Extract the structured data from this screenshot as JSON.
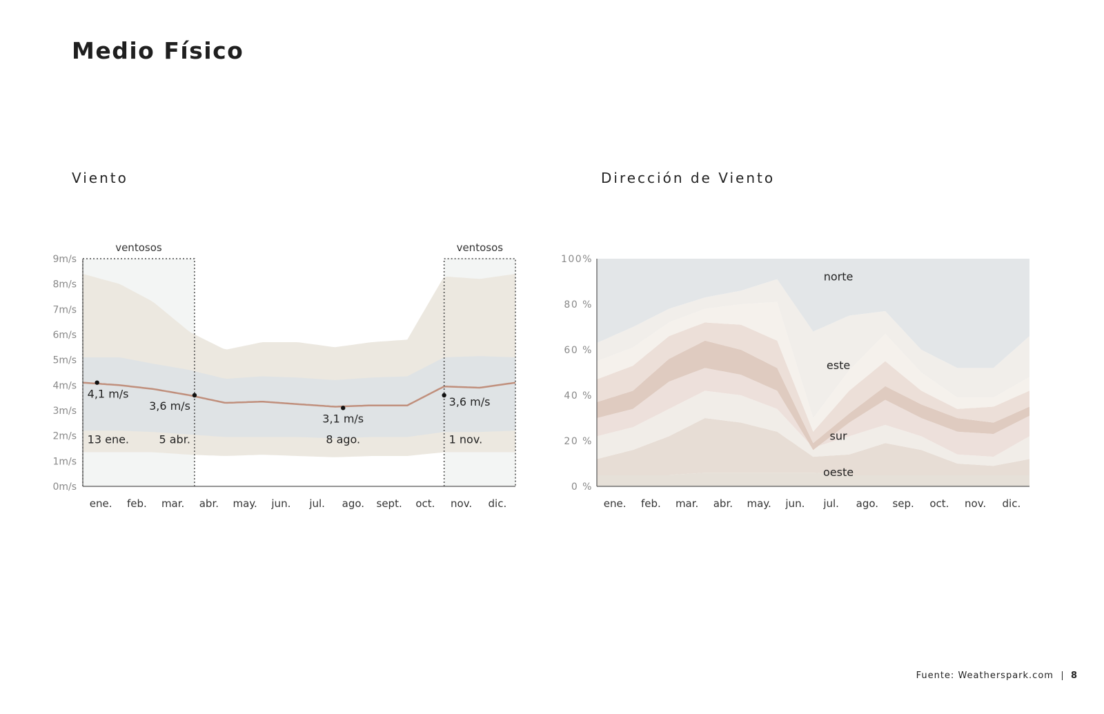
{
  "page": {
    "title": "Medio Físico",
    "source": "Fuente: Weatherspark.com",
    "page_number": "8"
  },
  "colors": {
    "band_outer": "#ece8e0",
    "band_inner": "#dfe3e5",
    "line": "#c08f7c",
    "windy_bg": "#f3f5f4",
    "axis": "#555555",
    "tick": "#888888"
  },
  "chart_data": [
    {
      "type": "line",
      "title": "Viento",
      "units": "m/s",
      "months": [
        "ene.",
        "feb.",
        "mar.",
        "abr.",
        "may.",
        "jun.",
        "jul.",
        "ago.",
        "sept.",
        "oct.",
        "nov.",
        "dic."
      ],
      "y_ticks": [
        "0m/s",
        "1m/s",
        "2m/s",
        "3m/s",
        "4m/s",
        "5m/s",
        "6m/s",
        "7m/s",
        "8m/s",
        "9m/s"
      ],
      "ylim": [
        0,
        9
      ],
      "x_day": [
        1,
        32,
        60,
        91,
        121,
        152,
        182,
        213,
        244,
        274,
        305,
        335,
        365
      ],
      "average": [
        4.1,
        4.0,
        3.85,
        3.6,
        3.3,
        3.35,
        3.25,
        3.15,
        3.2,
        3.2,
        3.95,
        3.9,
        4.1
      ],
      "band_p25_p75_low": [
        2.2,
        2.2,
        2.15,
        2.05,
        1.95,
        1.95,
        1.95,
        1.9,
        1.95,
        1.95,
        2.15,
        2.15,
        2.2
      ],
      "band_p25_p75_high": [
        5.1,
        5.1,
        4.85,
        4.6,
        4.25,
        4.35,
        4.3,
        4.2,
        4.3,
        4.35,
        5.1,
        5.15,
        5.1
      ],
      "band_p10_p90_low": [
        1.35,
        1.35,
        1.35,
        1.25,
        1.2,
        1.25,
        1.2,
        1.15,
        1.2,
        1.2,
        1.35,
        1.35,
        1.35
      ],
      "band_p10_p90_high": [
        8.4,
        8.0,
        7.3,
        6.1,
        5.4,
        5.7,
        5.7,
        5.5,
        5.7,
        5.8,
        8.3,
        8.2,
        8.4
      ],
      "windy_periods": [
        {
          "label": "ventosos",
          "start_day": 1,
          "end_day": 95
        },
        {
          "label": "ventosos",
          "start_day": 305,
          "end_day": 365
        }
      ],
      "annotations": [
        {
          "day": 13,
          "value": 4.1,
          "value_label": "4,1 m/s",
          "date_label": "13 ene."
        },
        {
          "day": 95,
          "value": 3.6,
          "value_label": "3,6 m/s",
          "date_label": "5 abr."
        },
        {
          "day": 220,
          "value": 3.1,
          "value_label": "3,1 m/s",
          "date_label": "8 ago."
        },
        {
          "day": 305,
          "value": 3.6,
          "value_label": "3,6 m/s",
          "date_label": "1 nov."
        }
      ]
    },
    {
      "type": "area",
      "title": "Dirección de Viento",
      "stacked": true,
      "months": [
        "ene.",
        "feb.",
        "mar.",
        "abr.",
        "may.",
        "jun.",
        "jul.",
        "ago.",
        "sep.",
        "oct.",
        "nov.",
        "dic."
      ],
      "y_ticks": [
        "0 %",
        "20 %",
        "40 %",
        "60 %",
        "80 %",
        "100%"
      ],
      "ylim": [
        0,
        100
      ],
      "x_month_index": [
        0,
        1,
        2,
        3,
        4,
        5,
        6,
        7,
        8,
        9,
        10,
        11,
        12
      ],
      "boundaries": [
        [
          0,
          0,
          0,
          0,
          0,
          0,
          0,
          0,
          0,
          0,
          0,
          0,
          0
        ],
        [
          5,
          5,
          5,
          6,
          6,
          6,
          6,
          5,
          5,
          5,
          5,
          5,
          5
        ],
        [
          12,
          16,
          22,
          30,
          28,
          24,
          13,
          14,
          19,
          16,
          10,
          9,
          12
        ],
        [
          22,
          26,
          34,
          42,
          40,
          34,
          17,
          22,
          27,
          22,
          14,
          13,
          22
        ],
        [
          30,
          34,
          46,
          52,
          49,
          42,
          16,
          28,
          38,
          30,
          24,
          23,
          31
        ],
        [
          37,
          42,
          56,
          64,
          60,
          52,
          19,
          32,
          44,
          36,
          30,
          28,
          35
        ],
        [
          47,
          53,
          66,
          72,
          71,
          64,
          24,
          42,
          55,
          42,
          34,
          35,
          42
        ],
        [
          55,
          61,
          72,
          78,
          80,
          81,
          30,
          51,
          67,
          50,
          39,
          39,
          48
        ],
        [
          63,
          70,
          78,
          83,
          86,
          91,
          68,
          75,
          77,
          60,
          52,
          52,
          66
        ],
        [
          100,
          100,
          100,
          100,
          100,
          100,
          100,
          100,
          100,
          100,
          100,
          100,
          100
        ]
      ],
      "band_colors": [
        "#e6e0d8",
        "#e7ddd5",
        "#f1ede8",
        "#ede0db",
        "#dfcbc0",
        "#ecdfd8",
        "#f5f1ec",
        "#f1eeea",
        "#e3e6e8"
      ],
      "directions": [
        {
          "name": "norte",
          "month_index": 6.7,
          "value": 92
        },
        {
          "name": "este",
          "month_index": 6.7,
          "value": 53
        },
        {
          "name": "sur",
          "month_index": 6.7,
          "value": 22
        },
        {
          "name": "oeste",
          "month_index": 6.7,
          "value": 6
        }
      ]
    }
  ]
}
